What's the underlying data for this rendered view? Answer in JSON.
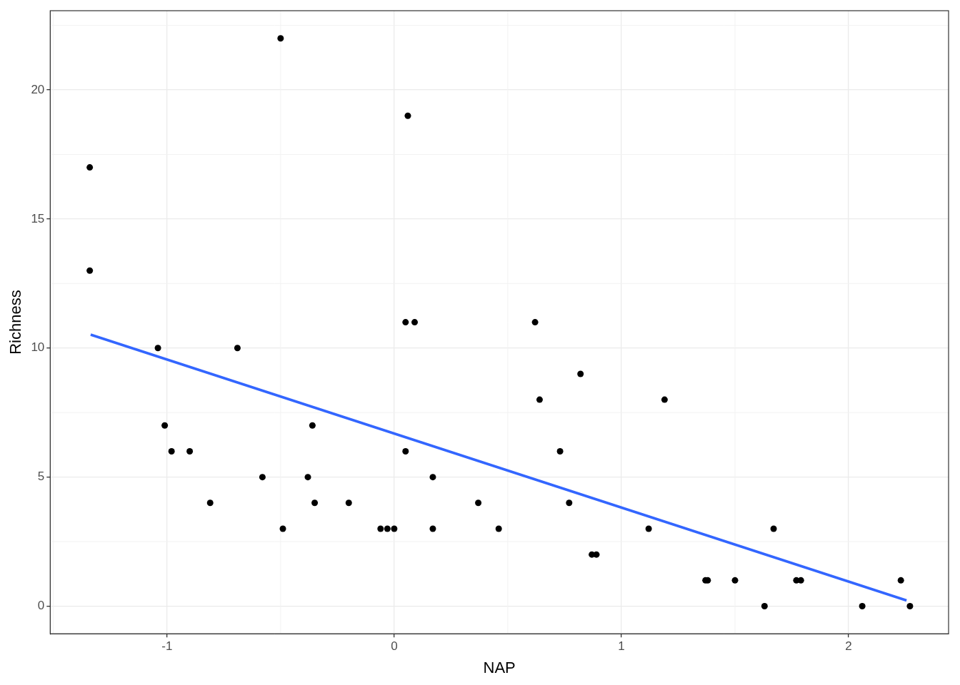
{
  "chart_data": {
    "type": "scatter",
    "xlabel": "NAP",
    "ylabel": "Richness",
    "x": [
      -1.34,
      -1.34,
      -1.04,
      -1.01,
      -0.98,
      -0.9,
      -0.81,
      -0.69,
      -0.58,
      -0.5,
      -0.49,
      -0.38,
      -0.36,
      -0.35,
      -0.2,
      -0.06,
      -0.03,
      0.0,
      0.05,
      0.06,
      0.05,
      0.09,
      0.17,
      0.17,
      0.37,
      0.46,
      0.62,
      0.64,
      0.73,
      0.77,
      0.82,
      0.87,
      0.89,
      1.12,
      1.19,
      1.37,
      1.38,
      1.5,
      1.63,
      1.67,
      1.77,
      1.79,
      2.06,
      2.23,
      2.27
    ],
    "values": [
      17,
      13,
      10,
      7,
      6,
      6,
      4,
      10,
      5,
      22,
      3,
      5,
      7,
      4,
      4,
      3,
      3,
      3,
      11,
      19,
      6,
      11,
      5,
      3,
      4,
      3,
      11,
      8,
      6,
      4,
      9,
      2,
      2,
      3,
      8,
      1,
      1,
      1,
      0,
      3,
      1,
      1,
      0,
      1,
      0
    ],
    "color": "#000000",
    "marker": "circle",
    "trend_line": {
      "type": "line",
      "x": [
        -1.336,
        2.255
      ],
      "values": [
        10.52,
        0.22
      ],
      "color": "#3366ff"
    },
    "xlim": [
      -1.514,
      2.44
    ],
    "ylim": [
      -1.07,
      23.07
    ],
    "xticks": [
      -1,
      0,
      1,
      2
    ],
    "yticks": [
      0,
      5,
      10,
      15,
      20
    ],
    "grid": true
  }
}
